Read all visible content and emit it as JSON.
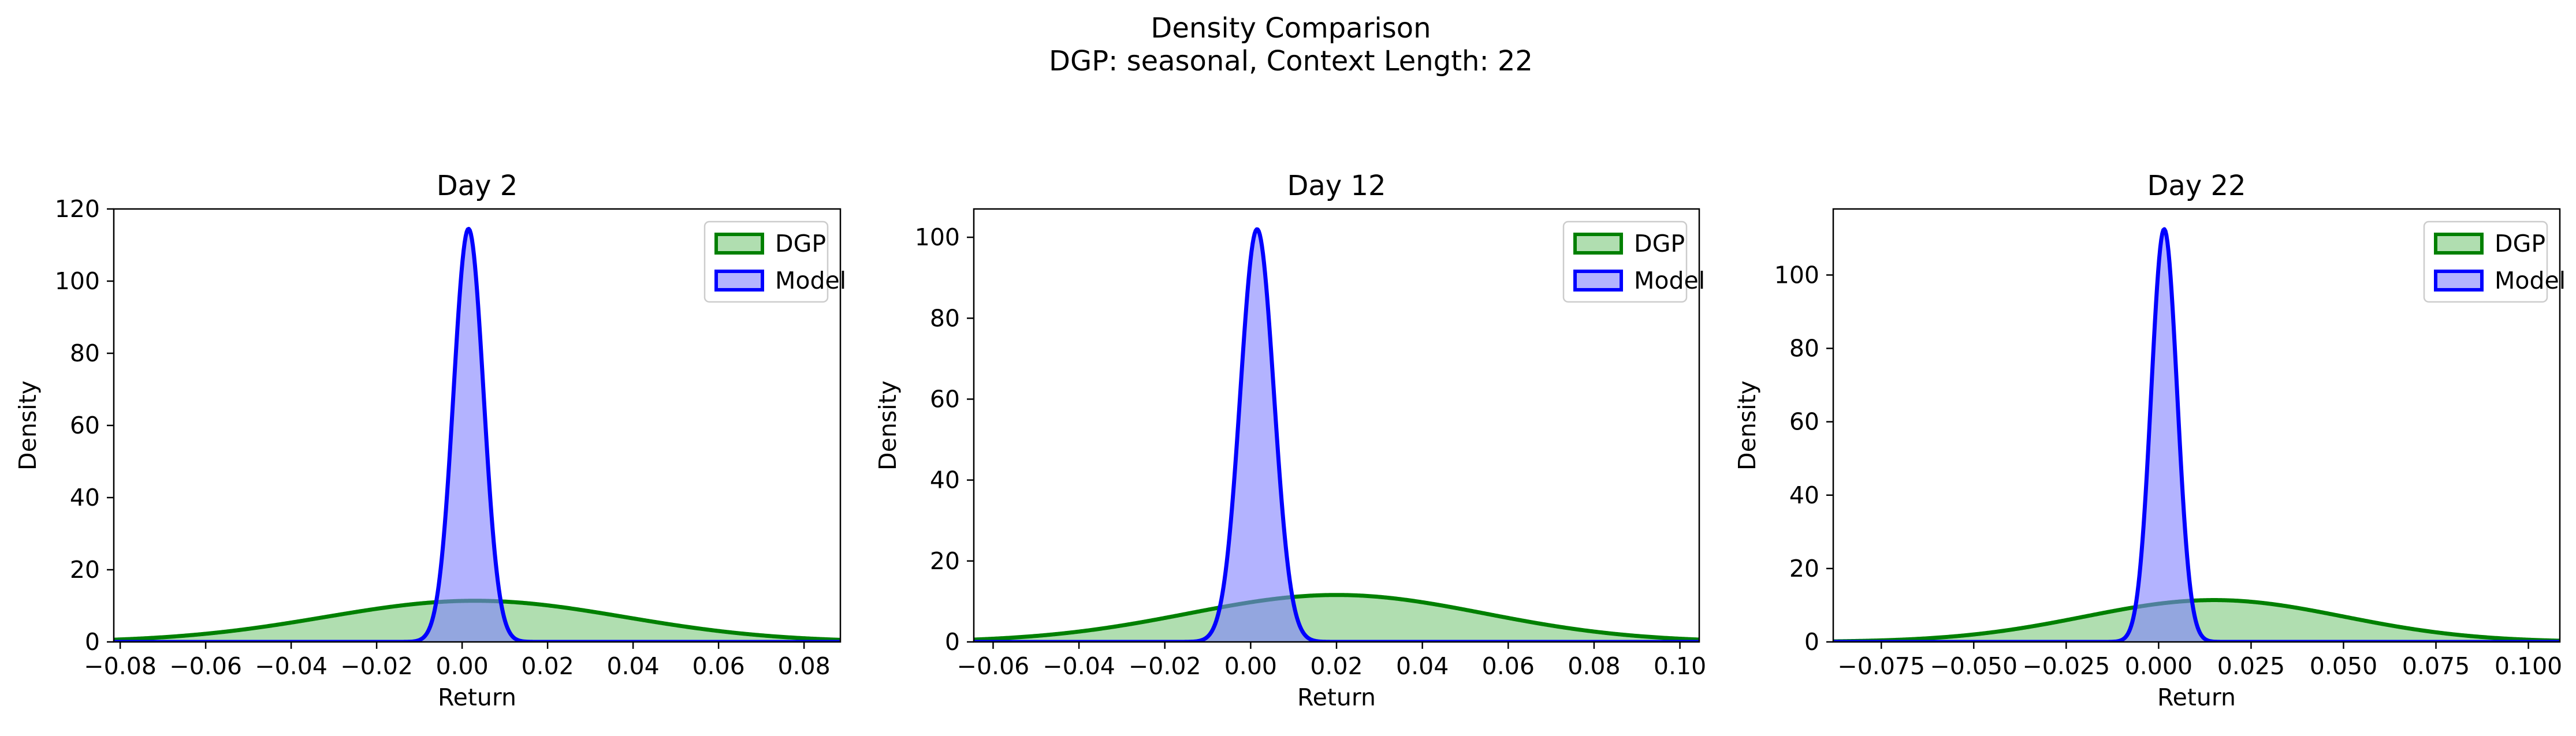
{
  "figure": {
    "title_line1": "Density Comparison",
    "title_line2": "DGP: seasonal, Context Length: 22"
  },
  "colors": {
    "dgp_line": "#008000",
    "dgp_fill": "#7fc97f",
    "model_line": "#0000ff",
    "model_fill": "#8080ff"
  },
  "chart_data": [
    {
      "type": "area",
      "title": "Day 2",
      "xlabel": "Return",
      "ylabel": "Density",
      "xlim": [
        -0.0815,
        0.0885
      ],
      "ylim": [
        0,
        120
      ],
      "xticks": [
        -0.08,
        -0.06,
        -0.04,
        -0.02,
        0.0,
        0.02,
        0.04,
        0.06,
        0.08
      ],
      "xtick_labels": [
        "−0.08",
        "−0.06",
        "−0.04",
        "−0.02",
        "0.00",
        "0.02",
        "0.04",
        "0.06",
        "0.08"
      ],
      "yticks": [
        0,
        20,
        40,
        60,
        80,
        100,
        120
      ],
      "ytick_labels": [
        "0",
        "20",
        "40",
        "60",
        "80",
        "100",
        "120"
      ],
      "legend": {
        "position": "top-right",
        "entries": [
          "DGP",
          "Model"
        ]
      },
      "series": [
        {
          "name": "DGP",
          "distribution": "normal",
          "mean": 0.003,
          "std": 0.035,
          "peak_density": 11.4
        },
        {
          "name": "Model",
          "distribution": "normal",
          "mean": 0.0015,
          "std": 0.0035,
          "peak_density": 114.5
        }
      ]
    },
    {
      "type": "area",
      "title": "Day 12",
      "xlabel": "Return",
      "ylabel": "Density",
      "xlim": [
        -0.0645,
        0.1045
      ],
      "ylim": [
        0,
        107
      ],
      "xticks": [
        -0.06,
        -0.04,
        -0.02,
        0.0,
        0.02,
        0.04,
        0.06,
        0.08,
        0.1
      ],
      "xtick_labels": [
        "−0.06",
        "−0.04",
        "−0.02",
        "0.00",
        "0.02",
        "0.04",
        "0.06",
        "0.08",
        "0.10"
      ],
      "yticks": [
        0,
        20,
        40,
        60,
        80,
        100
      ],
      "ytick_labels": [
        "0",
        "20",
        "40",
        "60",
        "80",
        "100"
      ],
      "legend": {
        "position": "top-right",
        "entries": [
          "DGP",
          "Model"
        ]
      },
      "series": [
        {
          "name": "DGP",
          "distribution": "normal",
          "mean": 0.02,
          "std": 0.0345,
          "peak_density": 11.6
        },
        {
          "name": "Model",
          "distribution": "normal",
          "mean": 0.0015,
          "std": 0.0039,
          "peak_density": 102.0
        }
      ]
    },
    {
      "type": "area",
      "title": "Day 22",
      "xlabel": "Return",
      "ylabel": "Density",
      "xlim": [
        -0.088,
        0.1085
      ],
      "ylim": [
        0,
        118
      ],
      "xticks": [
        -0.075,
        -0.05,
        -0.025,
        0.0,
        0.025,
        0.05,
        0.075,
        0.1
      ],
      "xtick_labels": [
        "−0.075",
        "−0.050",
        "−0.025",
        "0.000",
        "0.025",
        "0.050",
        "0.075",
        "0.100"
      ],
      "yticks": [
        0,
        20,
        40,
        60,
        80,
        100
      ],
      "ytick_labels": [
        "0",
        "20",
        "40",
        "60",
        "80",
        "100"
      ],
      "legend": {
        "position": "top-right",
        "entries": [
          "DGP",
          "Model"
        ]
      },
      "series": [
        {
          "name": "DGP",
          "distribution": "normal",
          "mean": 0.015,
          "std": 0.035,
          "peak_density": 11.4
        },
        {
          "name": "Model",
          "distribution": "normal",
          "mean": 0.0015,
          "std": 0.0035,
          "peak_density": 112.5
        }
      ]
    }
  ]
}
